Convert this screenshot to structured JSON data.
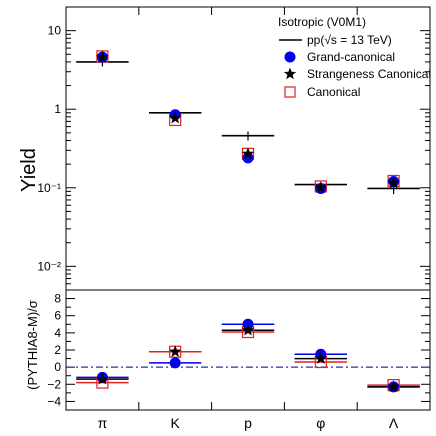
{
  "chart_data": [
    {
      "type": "scatter",
      "title": "",
      "ylabel": "Yield",
      "yscale": "log",
      "ylim": [
        0.005,
        20
      ],
      "grid": false,
      "legend_position": "top-right",
      "legend_header": "Isotropic (V0M1)",
      "categories": [
        "π",
        "K",
        "p",
        "φ",
        "Λ"
      ],
      "yticks": [
        {
          "value": 10,
          "label": "10"
        },
        {
          "value": 1,
          "label": "1"
        },
        {
          "value": 0.1,
          "label": "10⁻¹"
        },
        {
          "value": 0.01,
          "label": "10⁻²"
        }
      ],
      "series": [
        {
          "name": "pp(√s = 13 TeV)",
          "marker": "hline-errorbar",
          "color": "#000000",
          "values": [
            4.0,
            0.9,
            0.46,
            0.11,
            0.098
          ],
          "errors": [
            0.5,
            0.05,
            0.06,
            0.008,
            0.015
          ]
        },
        {
          "name": "Grand-canonical",
          "marker": "circle",
          "color": "#0000ee",
          "values": [
            4.6,
            0.85,
            0.24,
            0.098,
            0.12
          ]
        },
        {
          "name": "Strangeness Canonical",
          "marker": "star",
          "color": "#000000",
          "values": [
            4.6,
            0.77,
            0.27,
            0.1,
            0.115
          ]
        },
        {
          "name": "Canonical",
          "marker": "open-square",
          "color": "#e02020",
          "values": [
            4.7,
            0.73,
            0.27,
            0.104,
            0.122
          ]
        }
      ]
    },
    {
      "type": "scatter",
      "title": "",
      "ylabel": "(PYTHIA8-M)/σ",
      "ylim": [
        -5,
        9
      ],
      "grid": false,
      "reference_line": 0,
      "categories": [
        "π",
        "K",
        "p",
        "φ",
        "Λ"
      ],
      "yticks": [
        {
          "value": 8,
          "label": "8"
        },
        {
          "value": 6,
          "label": "6"
        },
        {
          "value": 4,
          "label": "4"
        },
        {
          "value": 2,
          "label": "2"
        },
        {
          "value": 0,
          "label": "0"
        },
        {
          "value": -2,
          "label": "−2"
        },
        {
          "value": -4,
          "label": "−4"
        }
      ],
      "series": [
        {
          "name": "Grand-canonical",
          "marker": "circle",
          "color": "#0000ee",
          "values": [
            -1.2,
            0.5,
            5.0,
            1.5,
            -2.3
          ]
        },
        {
          "name": "Strangeness Canonical",
          "marker": "star",
          "color": "#000000",
          "values": [
            -1.4,
            1.8,
            4.3,
            1.0,
            -2.3
          ]
        },
        {
          "name": "Canonical",
          "marker": "open-square",
          "color": "#e02020",
          "values": [
            -1.8,
            1.8,
            4.1,
            0.6,
            -2.1
          ]
        }
      ]
    }
  ]
}
